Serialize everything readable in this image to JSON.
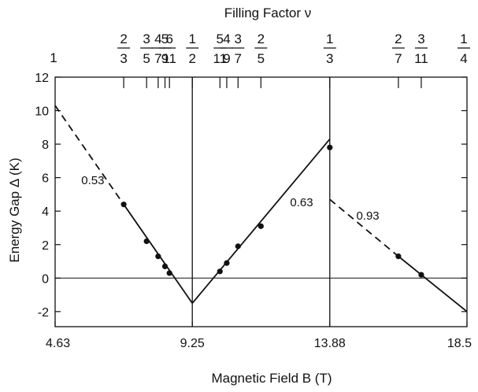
{
  "chart_data": {
    "type": "scatter",
    "title": "",
    "xlabel": "Magnetic Field  B (T)",
    "ylabel": "Energy Gap  Δ (K)",
    "top_label": "Filling Factor  ν",
    "xlim": [
      4.63,
      18.5
    ],
    "ylim": [
      -2.9,
      12
    ],
    "x_ticks": [
      4.63,
      9.25,
      13.88,
      18.5
    ],
    "x_tick_labels": [
      "4.63",
      "9.25",
      "13.88",
      "18.5"
    ],
    "y_ticks": [
      -2,
      0,
      2,
      4,
      6,
      8,
      10,
      12
    ],
    "y_tick_labels": [
      "-2",
      "0",
      "2",
      "4",
      "6",
      "8",
      "10",
      "12"
    ],
    "grid": false,
    "filling_factors": [
      {
        "num": "1",
        "den": "",
        "B": 4.63,
        "tick": false
      },
      {
        "num": "2",
        "den": "3",
        "B": 6.94,
        "tick": true
      },
      {
        "num": "3",
        "den": "5",
        "B": 7.71,
        "tick": true
      },
      {
        "num": "4",
        "den": "7",
        "B": 8.1,
        "tick": true
      },
      {
        "num": "5",
        "den": "9",
        "B": 8.33,
        "tick": true
      },
      {
        "num": "6",
        "den": "11",
        "B": 8.48,
        "tick": true
      },
      {
        "num": "1",
        "den": "2",
        "B": 9.25,
        "tick": true
      },
      {
        "num": "5",
        "den": "11",
        "B": 10.18,
        "tick": true
      },
      {
        "num": "4",
        "den": "9",
        "B": 10.41,
        "tick": true
      },
      {
        "num": "3",
        "den": "7",
        "B": 10.79,
        "tick": true
      },
      {
        "num": "2",
        "den": "5",
        "B": 11.56,
        "tick": true
      },
      {
        "num": "1",
        "den": "3",
        "B": 13.88,
        "tick": true
      },
      {
        "num": "2",
        "den": "7",
        "B": 16.19,
        "tick": true
      },
      {
        "num": "3",
        "den": "11",
        "B": 16.96,
        "tick": true
      },
      {
        "num": "1",
        "den": "4",
        "B": 18.5,
        "tick": false
      }
    ],
    "vertical_lines_B": [
      9.25,
      13.88
    ],
    "zero_line": true,
    "series": [
      {
        "values": [
          {
            "x": 6.94,
            "y": 4.4
          },
          {
            "x": 7.71,
            "y": 2.2
          },
          {
            "x": 8.1,
            "y": 1.3
          },
          {
            "x": 8.33,
            "y": 0.7
          },
          {
            "x": 8.48,
            "y": 0.3
          },
          {
            "x": 10.18,
            "y": 0.4
          },
          {
            "x": 10.41,
            "y": 0.9
          },
          {
            "x": 10.79,
            "y": 1.9
          },
          {
            "x": 11.56,
            "y": 3.1
          },
          {
            "x": 13.88,
            "y": 7.8
          },
          {
            "x": 16.19,
            "y": 1.3
          },
          {
            "x": 16.96,
            "y": 0.2
          }
        ]
      }
    ],
    "fit_lines": [
      {
        "style": "dashed",
        "points": [
          [
            4.63,
            10.3
          ],
          [
            6.94,
            4.4
          ]
        ]
      },
      {
        "style": "solid",
        "points": [
          [
            6.94,
            4.4
          ],
          [
            9.25,
            -1.5
          ]
        ]
      },
      {
        "style": "solid",
        "points": [
          [
            9.25,
            -1.5
          ],
          [
            13.88,
            8.3
          ]
        ]
      },
      {
        "style": "dashed",
        "points": [
          [
            13.88,
            4.7
          ],
          [
            16.19,
            1.3
          ]
        ]
      },
      {
        "style": "solid",
        "points": [
          [
            16.19,
            1.3
          ],
          [
            18.5,
            -2.0
          ]
        ]
      }
    ],
    "annotations": [
      {
        "text": "0.53",
        "x": 5.9,
        "y": 5.6
      },
      {
        "text": "0.63",
        "x": 12.93,
        "y": 4.3
      },
      {
        "text": "0.93",
        "x": 15.16,
        "y": 3.5
      }
    ]
  }
}
